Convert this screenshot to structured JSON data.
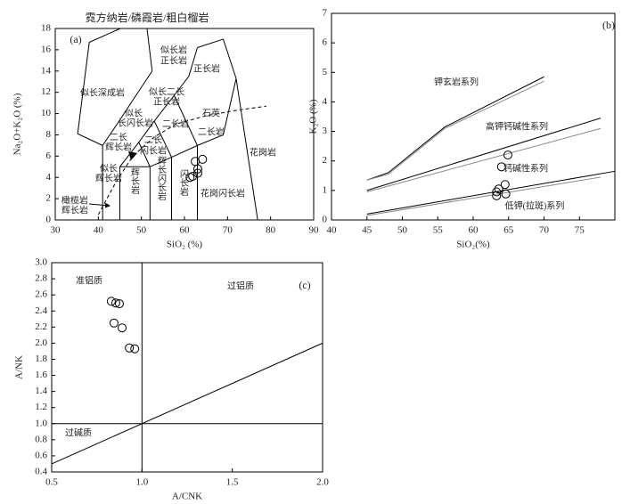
{
  "chart_data": [
    {
      "type": "scatter",
      "title": "霓方纳岩/磷霞岩/粗白榴岩",
      "panel_label": "(a)",
      "xlabel": "SiO₂ (%)",
      "ylabel": "Na₂O+K₂O (%)",
      "xlim": [
        30,
        90
      ],
      "ylim": [
        0,
        18
      ],
      "xticks": [
        30,
        40,
        50,
        60,
        70,
        80,
        90
      ],
      "yticks": [
        0,
        2,
        4,
        6,
        8,
        10,
        12,
        14,
        16,
        18
      ],
      "series": [
        {
          "x": [
            61.3,
            61.9,
            63.1,
            63.1,
            62.5,
            64.2
          ],
          "values": [
            4.0,
            4.1,
            4.4,
            4.8,
            5.5,
            5.7
          ],
          "color": "#000000"
        }
      ],
      "lines": [
        {
          "x": [
            41,
            41,
            45,
            48.4,
            52.5
          ],
          "y": [
            0,
            7,
            9.4,
            11.5,
            14
          ],
          "color": "#000000",
          "style": "solid"
        },
        {
          "x": [
            45,
            45,
            49.4,
            53,
            57.6,
            61,
            63
          ],
          "y": [
            0,
            5,
            7.3,
            9.3,
            11.7,
            13.5,
            16.2
          ],
          "color": "#000000",
          "style": "solid"
        },
        {
          "x": [
            45,
            52,
            57,
            63,
            69
          ],
          "y": [
            5,
            5,
            5.9,
            7,
            8
          ],
          "color": "#000000",
          "style": "solid"
        },
        {
          "x": [
            52,
            52,
            49.4
          ],
          "y": [
            0,
            5,
            7.3
          ],
          "color": "#000000",
          "style": "solid"
        },
        {
          "x": [
            57,
            57,
            53
          ],
          "y": [
            0,
            5.9,
            9.3
          ],
          "color": "#000000",
          "style": "solid"
        },
        {
          "x": [
            63,
            63,
            57.6
          ],
          "y": [
            0,
            7,
            11.7
          ],
          "color": "#000000",
          "style": "solid"
        },
        {
          "x": [
            77,
            72,
            69
          ],
          "y": [
            0,
            13.3,
            8
          ],
          "color": "#000000",
          "style": "solid"
        },
        {
          "x": [
            63,
            69,
            72
          ],
          "y": [
            16.2,
            17,
            13.3
          ],
          "color": "#000000",
          "style": "solid"
        },
        {
          "x": [
            41,
            35.2,
            37.9,
            45.1,
            51.3,
            52.5
          ],
          "y": [
            7,
            8.1,
            16.7,
            18,
            18,
            14
          ],
          "color": "#000000",
          "style": "solid"
        },
        {
          "x": [
            40,
            44,
            48,
            53,
            58,
            65,
            72,
            79
          ],
          "y": [
            0.5,
            3.5,
            6,
            7.8,
            9,
            9.8,
            10.3,
            10.7
          ],
          "color": "#000000",
          "style": "dashed"
        }
      ],
      "annotations": [
        "似长岩",
        "正长岩",
        "正长岩",
        "似长深成岩",
        "似长二长",
        "正长岩",
        "似长",
        "长闪长岩",
        "二长岩",
        "石英",
        "二长岩",
        "二长",
        "辉长岩",
        "二长",
        "闪长岩",
        "似长",
        "辉长岩",
        "辉长岩",
        "辉长闪长岩",
        "闪长岩",
        "花岗岩",
        "花岗闪长岩",
        "橄榄岩",
        "辉长岩"
      ]
    },
    {
      "type": "scatter",
      "panel_label": "(b)",
      "xlabel": "SiO₂(%)",
      "ylabel": "K₂O (%)",
      "xlim": [
        40,
        80
      ],
      "ylim": [
        0,
        7
      ],
      "xticks": [
        40,
        45,
        50,
        55,
        60,
        65,
        70,
        75
      ],
      "yticks": [
        0,
        1,
        2,
        3,
        4,
        5,
        6,
        7
      ],
      "series": [
        {
          "x": [
            64.9,
            64.0,
            64.5,
            63.6,
            63.3,
            63.3,
            64.6
          ],
          "values": [
            2.2,
            1.8,
            1.2,
            1.05,
            0.95,
            0.82,
            0.88
          ],
          "color": "#000000"
        }
      ],
      "lines": [
        {
          "x": [
            45,
            48,
            56,
            70
          ],
          "y": [
            1.35,
            1.6,
            3.15,
            4.85
          ],
          "color": "#000000",
          "style": "solid"
        },
        {
          "x": [
            45,
            48,
            56,
            70
          ],
          "y": [
            1.35,
            1.55,
            3.1,
            4.7
          ],
          "color": "#888888",
          "style": "solid"
        },
        {
          "x": [
            45,
            78
          ],
          "y": [
            1.0,
            3.45
          ],
          "color": "#000000",
          "style": "solid"
        },
        {
          "x": [
            45,
            78
          ],
          "y": [
            0.95,
            3.1
          ],
          "color": "#888888",
          "style": "solid"
        },
        {
          "x": [
            45,
            80
          ],
          "y": [
            0.2,
            1.65
          ],
          "color": "#000000",
          "style": "solid"
        },
        {
          "x": [
            45,
            78
          ],
          "y": [
            0.15,
            1.45
          ],
          "color": "#888888",
          "style": "solid"
        }
      ],
      "annotations": [
        "钾玄岩系列",
        "高钾钙碱性系列",
        "钙碱性系列",
        "低钾(拉斑)系列"
      ]
    },
    {
      "type": "scatter",
      "panel_label": "(c)",
      "xlabel": "A/CNK",
      "ylabel": "A/NK",
      "xlim": [
        0.5,
        2.0
      ],
      "ylim": [
        0.4,
        3.0
      ],
      "xticks": [
        0.5,
        {
          "value": 1,
          "label": "1.0"
        },
        1.5,
        {
          "value": 2,
          "label": "2.0"
        }
      ],
      "yticks": [
        0.4,
        0.6,
        0.8,
        {
          "value": 1,
          "label": "1.0"
        },
        1.2,
        1.4,
        1.6,
        1.8,
        {
          "value": 2,
          "label": "2.0"
        },
        2.2,
        2.4,
        2.6,
        2.8,
        {
          "value": 3,
          "label": "3.0"
        }
      ],
      "series": [
        {
          "x": [
            0.83,
            0.855,
            0.875,
            0.845,
            0.89,
            0.93,
            0.96
          ],
          "values": [
            2.52,
            2.5,
            2.49,
            2.25,
            2.19,
            1.94,
            1.93
          ],
          "color": "#000000"
        }
      ],
      "lines": [
        {
          "x": [
            1,
            1
          ],
          "y": [
            0.4,
            3.0
          ],
          "color": "#000000",
          "style": "solid"
        },
        {
          "x": [
            0.5,
            2.0
          ],
          "y": [
            1,
            1
          ],
          "color": "#000000",
          "style": "solid"
        },
        {
          "x": [
            0.5,
            2.0
          ],
          "y": [
            0.5,
            2.0
          ],
          "color": "#000000",
          "style": "solid"
        }
      ],
      "annotations": [
        "准铝质",
        "过铝质",
        "过碱质"
      ]
    }
  ]
}
